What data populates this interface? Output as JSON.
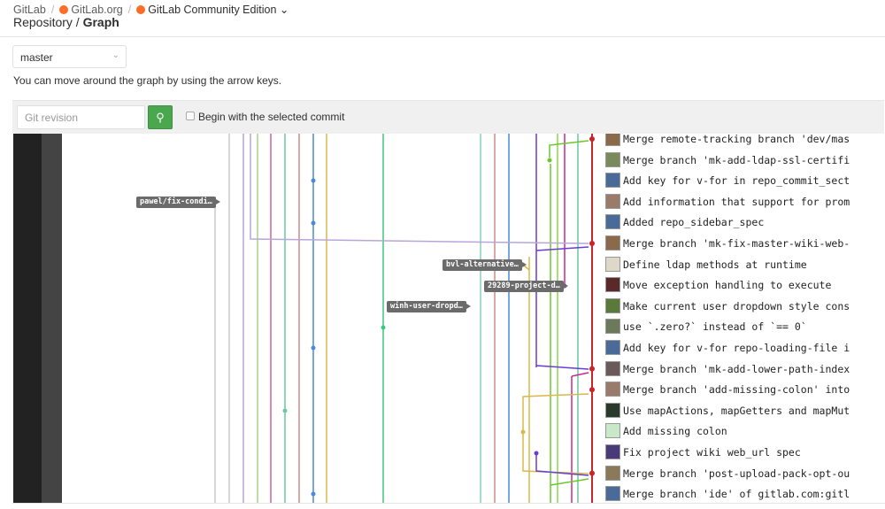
{
  "breadcrumb": {
    "root": "GitLab",
    "group": "GitLab.org",
    "project": "GitLab Community Edition",
    "page": "Repository",
    "current": "Graph"
  },
  "branch_select": {
    "value": "master"
  },
  "hint": "You can move around the graph by using the arrow keys.",
  "toolbar": {
    "revision_placeholder": "Git revision",
    "search_icon": "search-icon",
    "checkbox_label": "Begin with the selected commit",
    "accent": "#4aa74d"
  },
  "refs": [
    "pawel/fix-condi…",
    "bvl-alternative…",
    "29289-project-d…",
    "winh-user-dropd…"
  ],
  "commits": [
    {
      "message": "Merge remote-tracking branch 'dev/mas",
      "avatar": "#8a6a4a"
    },
    {
      "message": "Merge branch 'mk-add-ldap-ssl-certifi",
      "avatar": "#7a8a5a"
    },
    {
      "message": "Add key for v-for in repo_commit_sect",
      "avatar": "#4a6a9a"
    },
    {
      "message": "Add information that support for prom",
      "avatar": "#9a7a6a"
    },
    {
      "message": "Added repo_sidebar_spec",
      "avatar": "#4a6a9a"
    },
    {
      "message": "Merge branch 'mk-fix-master-wiki-web-",
      "avatar": "#8a6a4a"
    },
    {
      "message": "Define ldap methods at runtime",
      "avatar": "#ddd8c8"
    },
    {
      "message": "Move exception handling to execute",
      "avatar": "#5a2a2a"
    },
    {
      "message": "Make current user dropdown style cons",
      "avatar": "#5a7a3a"
    },
    {
      "message": "use `.zero?` instead of `== 0`",
      "avatar": "#6a7a5a"
    },
    {
      "message": "Add key for v-for repo-loading-file i",
      "avatar": "#4a6a9a"
    },
    {
      "message": "Merge branch 'mk-add-lower-path-index",
      "avatar": "#6a5a5a"
    },
    {
      "message": "Merge branch 'add-missing-colon' into",
      "avatar": "#9a7a6a"
    },
    {
      "message": "Use mapActions, mapGetters and mapMut",
      "avatar": "#2a3a2a"
    },
    {
      "message": "Add missing colon",
      "avatar": "#c8e8c8"
    },
    {
      "message": "Fix project wiki web_url spec",
      "avatar": "#4a3a7a"
    },
    {
      "message": "Merge branch 'post-upload-pack-opt-ou",
      "avatar": "#8a7a5a"
    },
    {
      "message": "Merge branch 'ide' of gitlab.com:gitl",
      "avatar": "#4a6a9a"
    }
  ],
  "colors": {
    "master": "#c8262c",
    "left_bar": "#222222",
    "left_bar2": "#444444"
  }
}
